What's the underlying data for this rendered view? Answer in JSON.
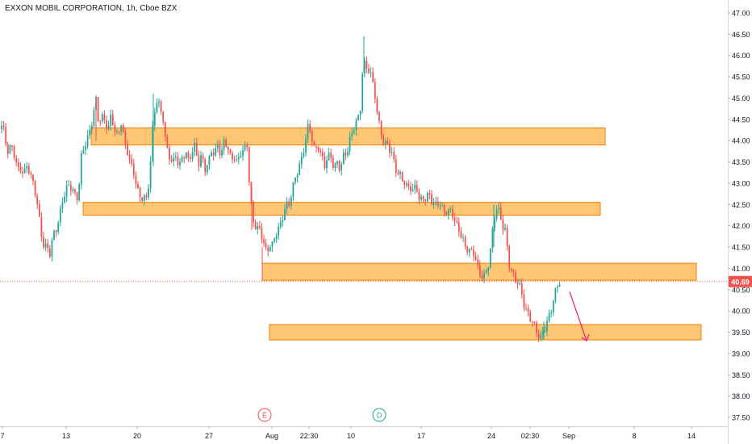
{
  "header": {
    "title": "EXXON MOBIL CORPORATION, 1h, Cboe BZX"
  },
  "colors": {
    "up": "#26a69a",
    "down": "#ef5350",
    "zone_fill": "#ffb74d",
    "zone_stroke": "#f57c00",
    "price_line": "#ef5350",
    "axis_text": "#131722",
    "grid": "#f0f3fa",
    "arrow": "#e91e63"
  },
  "chart_data": {
    "type": "candlestick",
    "title": "EXXON MOBIL CORPORATION, 1h, Cboe BZX",
    "ylim": [
      37.3,
      47.2
    ],
    "y_ticks": [
      "47.00",
      "46.50",
      "46.00",
      "45.50",
      "45.00",
      "44.50",
      "44.00",
      "43.50",
      "43.00",
      "42.50",
      "42.00",
      "41.50",
      "41.00",
      "40.50",
      "40.00",
      "39.50",
      "39.00",
      "38.50",
      "38.00",
      "37.50"
    ],
    "x_tick_labels": [
      "7",
      "13",
      "20",
      "27",
      "Aug",
      "22:30",
      "10",
      "17",
      "24",
      "02:30",
      "Sep",
      "8",
      "14"
    ],
    "last_price": "40.69",
    "last_value": 40.69,
    "zones": [
      {
        "name": "resistance-44",
        "low": 43.9,
        "high": 44.3
      },
      {
        "name": "zone-42-4",
        "low": 42.25,
        "high": 42.55
      },
      {
        "name": "zone-40-9",
        "low": 40.72,
        "high": 41.12
      },
      {
        "name": "support-39-5",
        "low": 39.32,
        "high": 39.68
      }
    ],
    "events": [
      {
        "label": "E"
      },
      {
        "label": "D"
      }
    ],
    "series_path": [
      [
        0,
        44.2
      ],
      [
        3,
        44.4
      ],
      [
        6,
        44.0
      ],
      [
        10,
        43.8
      ],
      [
        14,
        43.9
      ],
      [
        18,
        43.6
      ],
      [
        22,
        43.3
      ],
      [
        26,
        43.4
      ],
      [
        30,
        43.2
      ],
      [
        34,
        43.4
      ],
      [
        38,
        43.2
      ],
      [
        42,
        43.0
      ],
      [
        46,
        42.5
      ],
      [
        50,
        41.9
      ],
      [
        54,
        41.6
      ],
      [
        58,
        41.5
      ],
      [
        62,
        41.3
      ],
      [
        66,
        41.8
      ],
      [
        70,
        42.0
      ],
      [
        74,
        42.2
      ],
      [
        78,
        42.6
      ],
      [
        82,
        42.9
      ],
      [
        86,
        43.0
      ],
      [
        90,
        42.8
      ],
      [
        95,
        42.6
      ],
      [
        98,
        43.0
      ],
      [
        100,
        43.6
      ],
      [
        104,
        43.8
      ],
      [
        108,
        44.0
      ],
      [
        112,
        44.3
      ],
      [
        116,
        44.7
      ],
      [
        119,
        44.9
      ],
      [
        122,
        44.4
      ],
      [
        126,
        44.6
      ],
      [
        130,
        44.5
      ],
      [
        134,
        44.2
      ],
      [
        138,
        44.6
      ],
      [
        142,
        44.3
      ],
      [
        146,
        44.1
      ],
      [
        150,
        44.4
      ],
      [
        154,
        44.0
      ],
      [
        158,
        43.8
      ],
      [
        162,
        43.4
      ],
      [
        166,
        43.2
      ],
      [
        170,
        42.9
      ],
      [
        174,
        42.7
      ],
      [
        178,
        42.6
      ],
      [
        182,
        42.6
      ],
      [
        186,
        43.4
      ],
      [
        190,
        44.5
      ],
      [
        194,
        44.9
      ],
      [
        198,
        44.8
      ],
      [
        202,
        44.6
      ],
      [
        206,
        43.8
      ],
      [
        210,
        43.6
      ],
      [
        214,
        43.5
      ],
      [
        218,
        43.7
      ],
      [
        222,
        43.3
      ],
      [
        226,
        43.6
      ],
      [
        230,
        43.8
      ],
      [
        234,
        43.5
      ],
      [
        238,
        43.7
      ],
      [
        242,
        43.9
      ],
      [
        246,
        43.5
      ],
      [
        250,
        43.6
      ],
      [
        254,
        43.3
      ],
      [
        258,
        43.5
      ],
      [
        262,
        43.8
      ],
      [
        266,
        43.6
      ],
      [
        270,
        43.9
      ],
      [
        274,
        43.7
      ],
      [
        278,
        44.0
      ],
      [
        282,
        43.8
      ],
      [
        286,
        43.6
      ],
      [
        290,
        43.7
      ],
      [
        294,
        43.4
      ],
      [
        298,
        43.7
      ],
      [
        302,
        43.8
      ],
      [
        306,
        44.0
      ],
      [
        310,
        42.6
      ],
      [
        314,
        42.1
      ],
      [
        318,
        42.0
      ],
      [
        322,
        41.9
      ],
      [
        326,
        41.6
      ],
      [
        330,
        41.4
      ],
      [
        334,
        41.6
      ],
      [
        338,
        41.5
      ],
      [
        342,
        41.8
      ],
      [
        346,
        42.0
      ],
      [
        350,
        42.2
      ],
      [
        354,
        42.4
      ],
      [
        358,
        42.5
      ],
      [
        362,
        42.9
      ],
      [
        366,
        43.1
      ],
      [
        370,
        43.3
      ],
      [
        374,
        43.6
      ],
      [
        378,
        44.0
      ],
      [
        382,
        44.3
      ],
      [
        386,
        44.1
      ],
      [
        390,
        43.8
      ],
      [
        394,
        43.9
      ],
      [
        398,
        43.6
      ],
      [
        402,
        43.4
      ],
      [
        406,
        43.7
      ],
      [
        410,
        43.6
      ],
      [
        414,
        43.3
      ],
      [
        418,
        43.5
      ],
      [
        422,
        43.4
      ],
      [
        426,
        43.6
      ],
      [
        430,
        43.7
      ],
      [
        434,
        44.1
      ],
      [
        438,
        44.3
      ],
      [
        442,
        44.4
      ],
      [
        446,
        44.6
      ],
      [
        450,
        45.9
      ],
      [
        454,
        45.7
      ],
      [
        458,
        45.6
      ],
      [
        462,
        45.4
      ],
      [
        466,
        45.0
      ],
      [
        468,
        44.5
      ],
      [
        472,
        44.2
      ],
      [
        476,
        43.9
      ],
      [
        480,
        44.0
      ],
      [
        484,
        43.7
      ],
      [
        488,
        43.5
      ],
      [
        492,
        43.3
      ],
      [
        496,
        43.2
      ],
      [
        500,
        43.0
      ],
      [
        504,
        42.9
      ],
      [
        508,
        43.0
      ],
      [
        512,
        42.8
      ],
      [
        516,
        42.9
      ],
      [
        520,
        42.6
      ],
      [
        524,
        42.7
      ],
      [
        528,
        42.6
      ],
      [
        532,
        42.7
      ],
      [
        536,
        42.6
      ],
      [
        540,
        42.5
      ],
      [
        544,
        42.5
      ],
      [
        548,
        42.4
      ],
      [
        552,
        42.4
      ],
      [
        556,
        42.3
      ],
      [
        560,
        42.3
      ],
      [
        564,
        42.1
      ],
      [
        568,
        42.0
      ],
      [
        572,
        41.7
      ],
      [
        576,
        41.5
      ],
      [
        580,
        41.5
      ],
      [
        584,
        41.4
      ],
      [
        588,
        41.3
      ],
      [
        592,
        41.0
      ],
      [
        596,
        40.9
      ],
      [
        600,
        40.8
      ],
      [
        604,
        40.9
      ],
      [
        608,
        41.5
      ],
      [
        612,
        42.2
      ],
      [
        616,
        42.4
      ],
      [
        620,
        42.2
      ],
      [
        624,
        42.0
      ],
      [
        627,
        41.9
      ],
      [
        630,
        41.1
      ],
      [
        634,
        40.9
      ],
      [
        638,
        40.8
      ],
      [
        642,
        40.7
      ],
      [
        646,
        40.4
      ],
      [
        650,
        40.1
      ],
      [
        654,
        40.0
      ],
      [
        658,
        39.8
      ],
      [
        662,
        39.6
      ],
      [
        666,
        39.5
      ],
      [
        670,
        39.4
      ],
      [
        674,
        39.5
      ],
      [
        678,
        39.7
      ],
      [
        682,
        40.0
      ],
      [
        686,
        40.3
      ],
      [
        690,
        40.5
      ],
      [
        694,
        40.69
      ]
    ]
  }
}
